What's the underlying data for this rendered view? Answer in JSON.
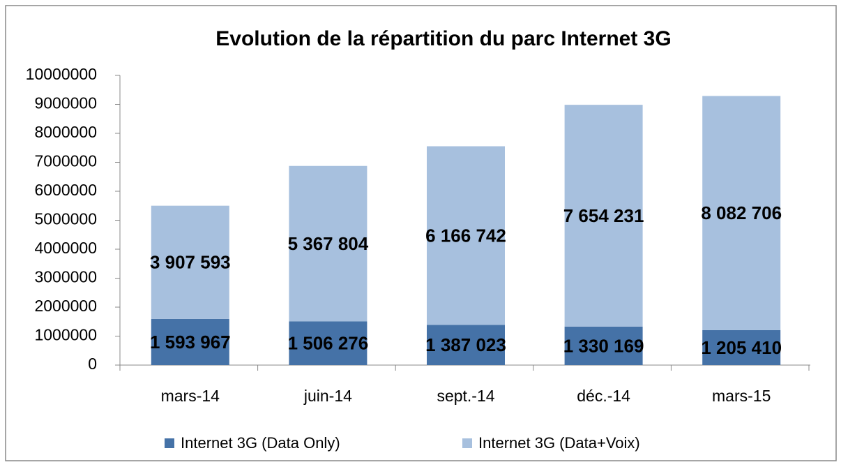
{
  "chart_data": {
    "type": "stacked_bar",
    "title": "Evolution de la répartition du parc Internet 3G",
    "categories": [
      "mars-14",
      "juin-14",
      "sept.-14",
      "déc.-14",
      "mars-15"
    ],
    "series": [
      {
        "name": "Internet 3G (Data Only)",
        "color": "#4572a7",
        "values": [
          1593967,
          1506276,
          1387023,
          1330169,
          1205410
        ],
        "value_labels": [
          "1 593 967",
          "1 506 276",
          "1 387 023",
          "1 330 169",
          "1 205 410"
        ]
      },
      {
        "name": "Internet 3G (Data+Voix)",
        "color": "#a7c0de",
        "values": [
          3907593,
          5367804,
          6166742,
          7654231,
          8082706
        ],
        "value_labels": [
          "3 907 593",
          "5 367 804",
          "6 166 742",
          "7 654 231",
          "8 082 706"
        ]
      }
    ],
    "ylim": [
      0,
      10000000
    ],
    "yticks": [
      0,
      1000000,
      2000000,
      3000000,
      4000000,
      5000000,
      6000000,
      7000000,
      8000000,
      9000000,
      10000000
    ],
    "legend": "bottom"
  }
}
